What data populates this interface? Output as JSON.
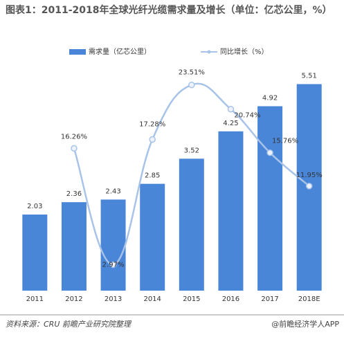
{
  "chart_data": {
    "type": "bar-line",
    "title": "图表1：2011-2018年全球光纤光缆需求量及增长（单位：亿芯公里，%）",
    "categories": [
      "2011",
      "2012",
      "2013",
      "2014",
      "2015",
      "2016",
      "2017",
      "2018E"
    ],
    "series": [
      {
        "name": "需求量（亿芯公里）",
        "type": "bar",
        "color": "#4a86d8",
        "values": [
          2.03,
          2.36,
          2.43,
          2.85,
          3.52,
          4.25,
          4.92,
          5.51
        ]
      },
      {
        "name": "同比增长（%）",
        "type": "line",
        "axis": "y2",
        "color": "#a8c3e8",
        "values": [
          null,
          16.26,
          2.97,
          17.28,
          23.51,
          20.74,
          15.76,
          11.95
        ],
        "value_labels": [
          null,
          "16.26%",
          "2.97%",
          "17.28%",
          "23.51%",
          "20.74%",
          "15.76%",
          "11.95%"
        ]
      }
    ],
    "ylim": [
      0,
      6
    ],
    "y2lim": [
      0,
      25.7
    ],
    "source": "资料来源：CRU 前瞻产业研究院整理",
    "credit": "@前瞻经济学人APP"
  }
}
